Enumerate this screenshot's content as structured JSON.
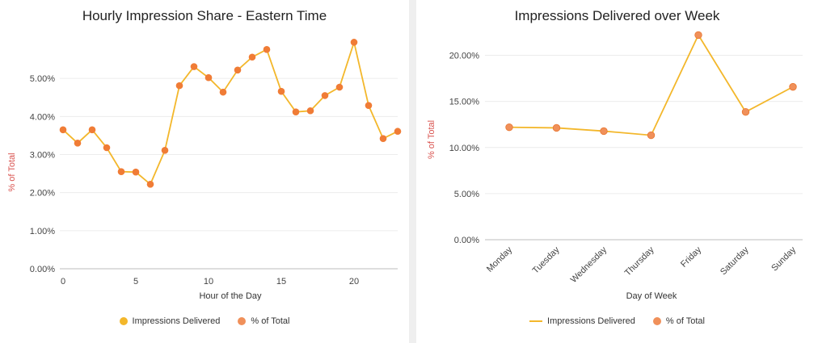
{
  "colors": {
    "line": "#f3b72b",
    "marker": "#f07c36",
    "ylabel": "#d9534f"
  },
  "chart_data": [
    {
      "type": "line",
      "title": "Hourly Impression Share - Eastern Time",
      "xlabel": "Hour of the Day",
      "ylabel": "% of Total",
      "xlim": [
        0,
        23
      ],
      "xticks": [
        0,
        5,
        10,
        15,
        20
      ],
      "ylim": [
        0,
        6
      ],
      "yticks": [
        0,
        1,
        2,
        3,
        4,
        5
      ],
      "ytick_labels": [
        "0.00%",
        "1.00%",
        "2.00%",
        "3.00%",
        "4.00%",
        "5.00%"
      ],
      "x": [
        0,
        1,
        2,
        3,
        4,
        5,
        6,
        7,
        8,
        9,
        10,
        11,
        12,
        13,
        14,
        15,
        16,
        17,
        18,
        19,
        20,
        21,
        22,
        23
      ],
      "series": [
        {
          "name": "Impressions Delivered",
          "values": [
            3.65,
            3.3,
            3.65,
            3.18,
            2.55,
            2.54,
            2.22,
            3.11,
            4.81,
            5.31,
            5.02,
            4.64,
            5.22,
            5.56,
            5.76,
            4.66,
            4.12,
            4.15,
            4.55,
            4.77,
            5.95,
            4.29,
            3.42,
            3.61
          ]
        }
      ],
      "legend": [
        "Impressions Delivered",
        "% of Total"
      ],
      "legend_placement": "bottom"
    },
    {
      "type": "line",
      "title": "Impressions Delivered over Week",
      "xlabel": "Day of Week",
      "ylabel": "% of Total",
      "categories": [
        "Monday",
        "Tuesday",
        "Wednesday",
        "Thursday",
        "Friday",
        "Saturday",
        "Sunday"
      ],
      "ylim": [
        0,
        22.5
      ],
      "yticks": [
        0,
        5,
        10,
        15,
        20
      ],
      "ytick_labels": [
        "0.00%",
        "5.00%",
        "10.00%",
        "15.00%",
        "20.00%"
      ],
      "series": [
        {
          "name": "Impressions Delivered",
          "values": [
            12.2,
            12.13,
            11.78,
            11.33,
            22.2,
            13.86,
            16.58
          ]
        }
      ],
      "legend": [
        "Impressions Delivered",
        "% of Total"
      ],
      "legend_placement": "bottom"
    }
  ]
}
